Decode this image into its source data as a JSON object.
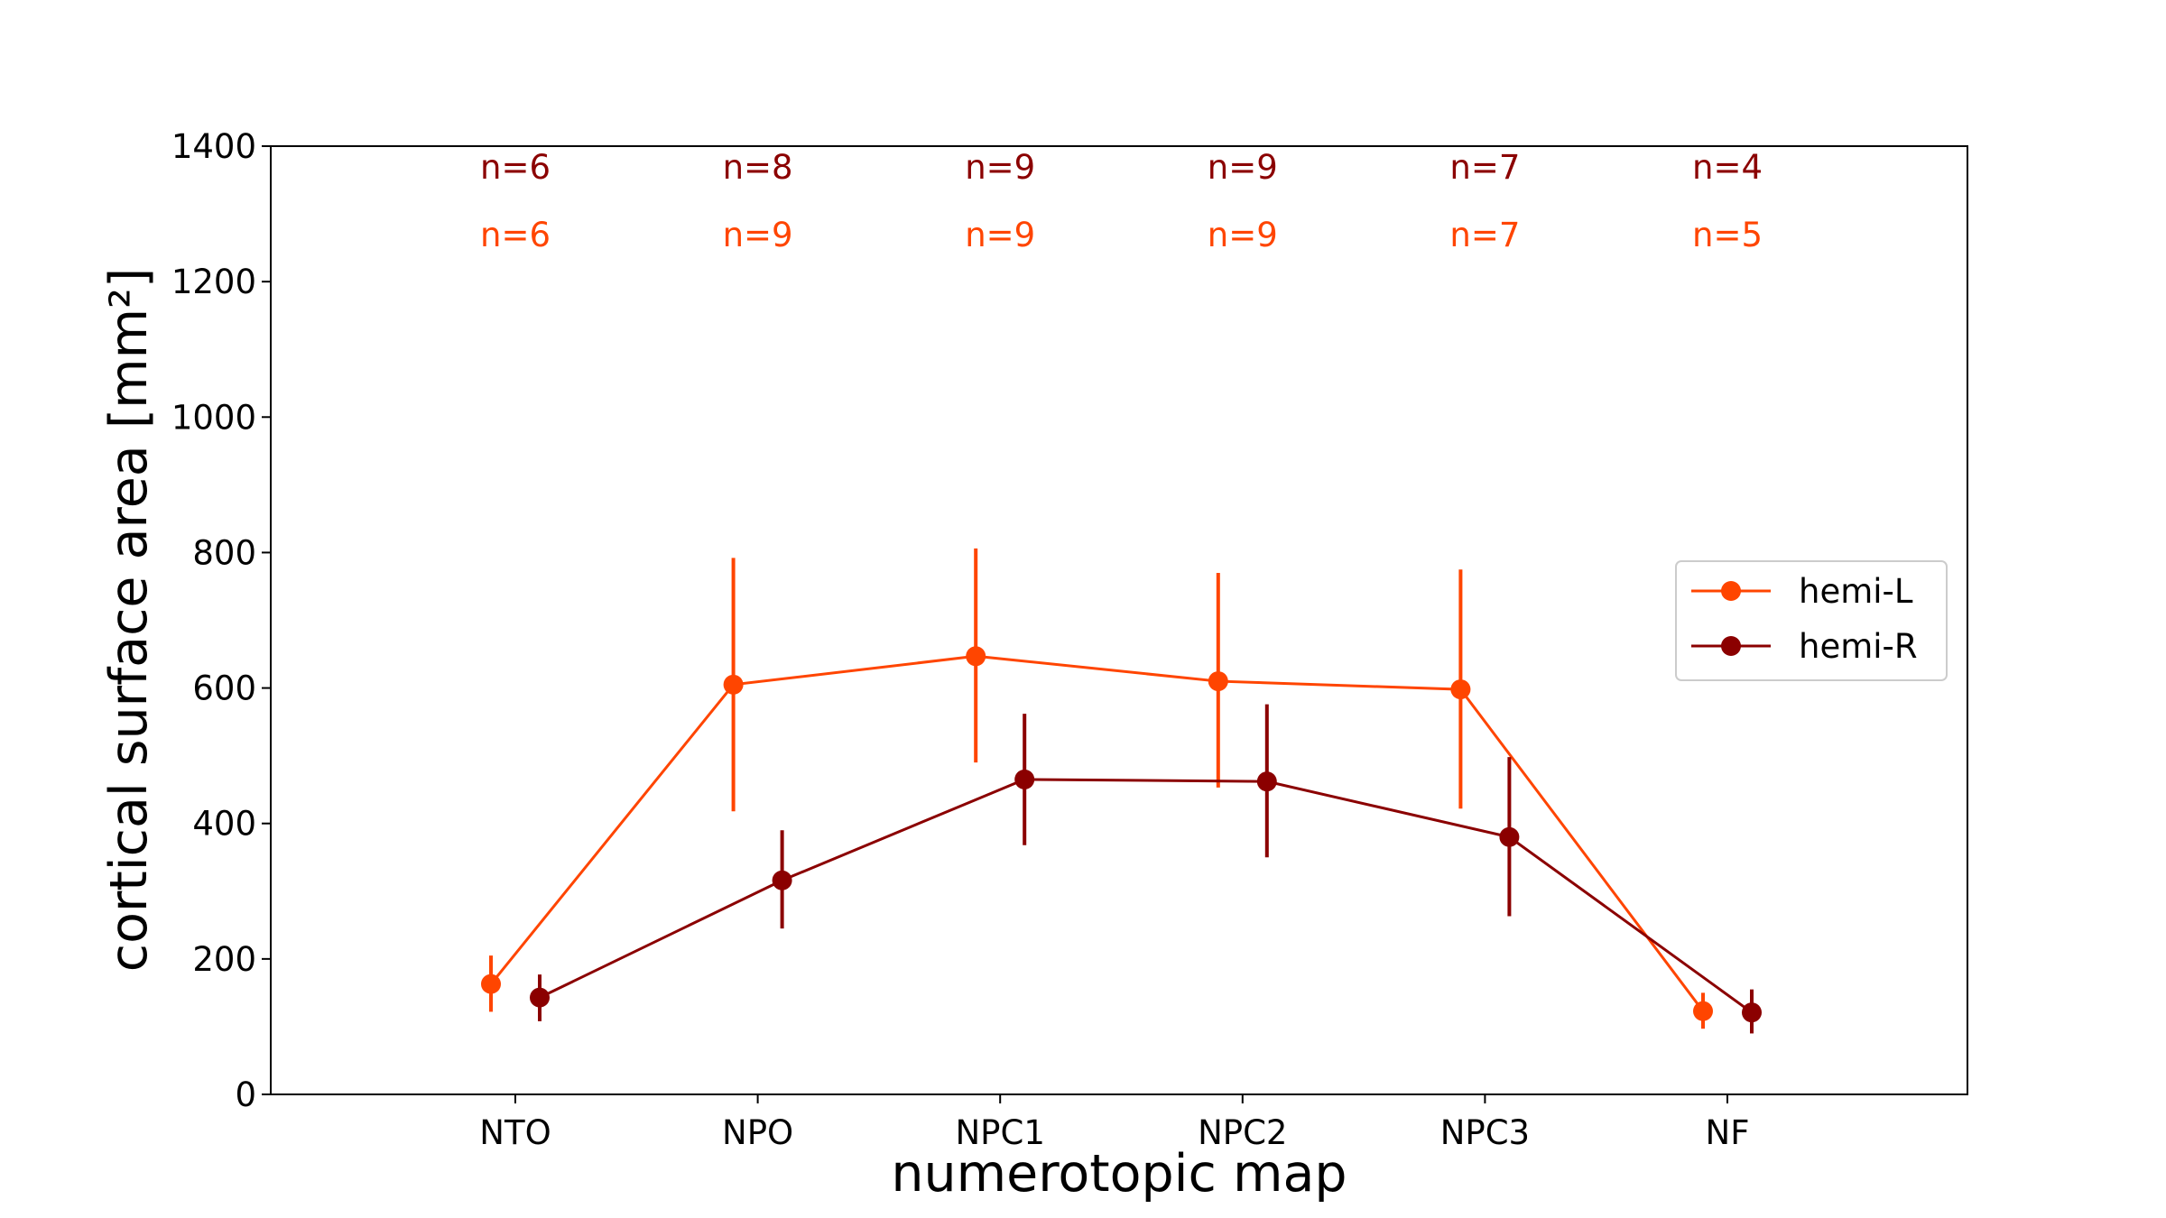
{
  "chart_data": {
    "type": "line",
    "xlabel": "numerotopic map",
    "ylabel": "cortical surface area [mm²]",
    "categories": [
      "NTO",
      "NPO",
      "NPC1",
      "NPC2",
      "NPC3",
      "NF"
    ],
    "ylim": [
      0,
      1400
    ],
    "yticks": [
      0,
      200,
      400,
      600,
      800,
      1000,
      1200,
      1400
    ],
    "grid": false,
    "legend_position": "right",
    "error_bars": true,
    "series": [
      {
        "name": "hemi-L",
        "color": "#ff4500",
        "values": [
          163,
          605,
          647,
          610,
          598,
          123
        ],
        "err_low": [
          122,
          418,
          490,
          453,
          422,
          97
        ],
        "err_high": [
          205,
          792,
          806,
          770,
          775,
          150
        ],
        "n_labels": [
          "n=6",
          "n=9",
          "n=9",
          "n=9",
          "n=7",
          "n=5"
        ]
      },
      {
        "name": "hemi-R",
        "color": "#8b0000",
        "values": [
          143,
          316,
          465,
          462,
          380,
          121
        ],
        "err_low": [
          108,
          245,
          368,
          350,
          263,
          90
        ],
        "err_high": [
          177,
          390,
          562,
          576,
          498,
          155
        ],
        "n_labels": [
          "n=6",
          "n=8",
          "n=9",
          "n=9",
          "n=7",
          "n=4"
        ]
      }
    ]
  }
}
